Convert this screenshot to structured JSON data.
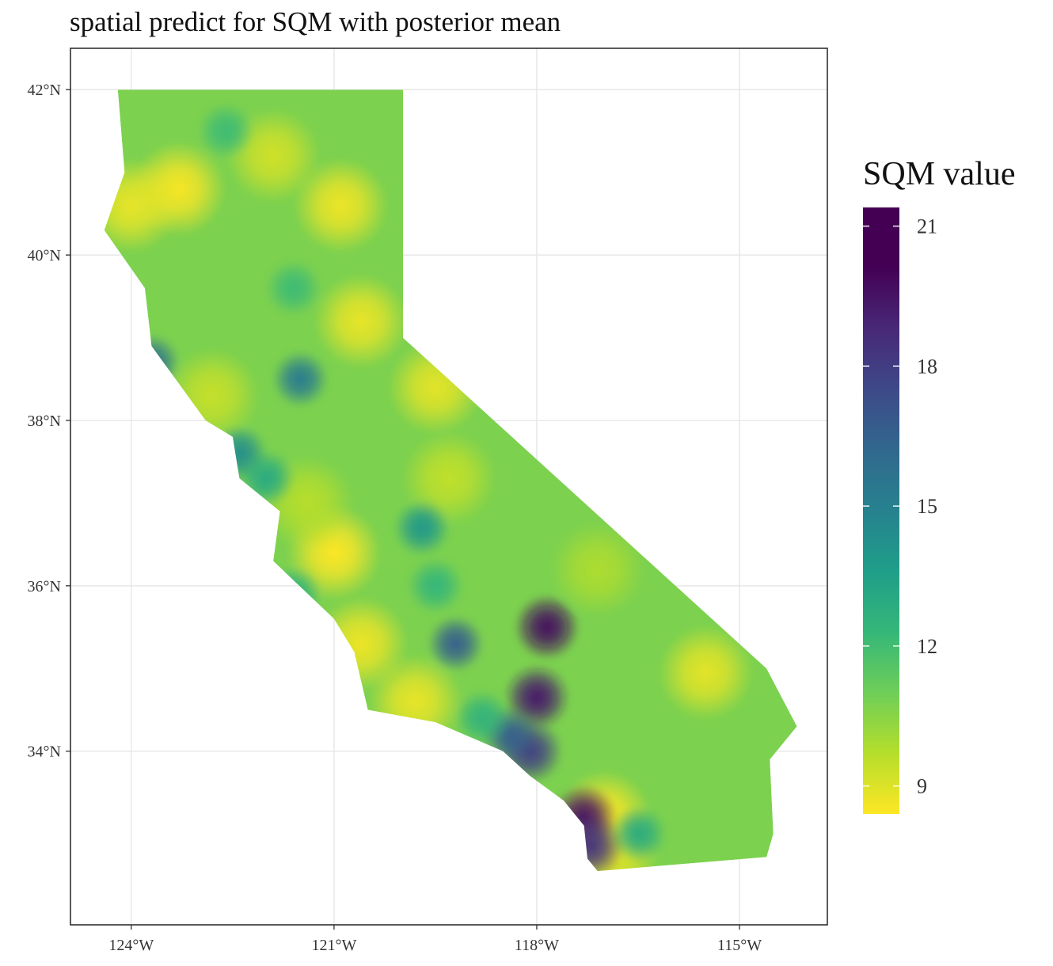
{
  "chart_data": {
    "type": "heatmap",
    "title": "spatial predict for SQM with posterior mean",
    "xlabel": "",
    "ylabel": "",
    "x_ticks": [
      {
        "value": -124,
        "label": "124°W"
      },
      {
        "value": -121,
        "label": "121°W"
      },
      {
        "value": -118,
        "label": "118°W"
      },
      {
        "value": -115,
        "label": "115°W"
      }
    ],
    "y_ticks": [
      {
        "value": 34,
        "label": "34°N"
      },
      {
        "value": 36,
        "label": "36°N"
      },
      {
        "value": 38,
        "label": "38°N"
      },
      {
        "value": 40,
        "label": "40°N"
      },
      {
        "value": 42,
        "label": "42°N"
      }
    ],
    "xlim": [
      -124.9,
      -113.7
    ],
    "ylim": [
      31.9,
      42.5
    ],
    "grid": true,
    "colorscale": "viridis",
    "legend": {
      "title": "SQM value",
      "position": "right",
      "range": [
        8.4,
        21.4
      ],
      "ticks": [
        {
          "value": 9,
          "label": "9"
        },
        {
          "value": 12,
          "label": "12"
        },
        {
          "value": 15,
          "label": "15"
        },
        {
          "value": 18,
          "label": "18"
        },
        {
          "value": 21,
          "label": "21"
        }
      ]
    },
    "region_outline": [
      [
        -124.2,
        42.0
      ],
      [
        -119.98,
        42.0
      ],
      [
        -119.98,
        39.0
      ],
      [
        -114.6,
        35.0
      ],
      [
        -114.15,
        34.3
      ],
      [
        -114.55,
        33.9
      ],
      [
        -114.5,
        33.0
      ],
      [
        -114.6,
        32.72
      ],
      [
        -117.1,
        32.55
      ],
      [
        -117.25,
        32.7
      ],
      [
        -117.3,
        33.1
      ],
      [
        -117.6,
        33.4
      ],
      [
        -118.1,
        33.7
      ],
      [
        -118.5,
        34.0
      ],
      [
        -119.5,
        34.35
      ],
      [
        -120.5,
        34.5
      ],
      [
        -120.7,
        35.2
      ],
      [
        -121.0,
        35.6
      ],
      [
        -121.9,
        36.3
      ],
      [
        -121.8,
        36.9
      ],
      [
        -122.4,
        37.3
      ],
      [
        -122.5,
        37.8
      ],
      [
        -122.9,
        38.0
      ],
      [
        -123.7,
        38.9
      ],
      [
        -123.8,
        39.6
      ],
      [
        -124.4,
        40.3
      ],
      [
        -124.1,
        41.0
      ],
      [
        -124.2,
        42.0
      ]
    ],
    "background_value": 11.0,
    "hotspots": [
      {
        "lon": -117.85,
        "lat": 35.5,
        "value": 21.0
      },
      {
        "lon": -118.0,
        "lat": 34.65,
        "value": 20.5
      },
      {
        "lon": -117.3,
        "lat": 33.2,
        "value": 20.8
      },
      {
        "lon": -117.2,
        "lat": 32.85,
        "value": 19.5
      },
      {
        "lon": -118.1,
        "lat": 34.0,
        "value": 19.0
      },
      {
        "lon": -118.4,
        "lat": 34.2,
        "value": 17.5
      },
      {
        "lon": -119.2,
        "lat": 35.3,
        "value": 17.5
      },
      {
        "lon": -123.7,
        "lat": 38.7,
        "value": 16.5
      },
      {
        "lon": -121.5,
        "lat": 38.5,
        "value": 16.0
      },
      {
        "lon": -122.4,
        "lat": 37.6,
        "value": 15.0
      },
      {
        "lon": -119.7,
        "lat": 36.7,
        "value": 14.5
      },
      {
        "lon": -122.0,
        "lat": 37.3,
        "value": 13.5
      },
      {
        "lon": -116.5,
        "lat": 33.0,
        "value": 13.5
      },
      {
        "lon": -122.6,
        "lat": 41.5,
        "value": 12.5
      },
      {
        "lon": -121.6,
        "lat": 39.6,
        "value": 12.5
      },
      {
        "lon": -118.8,
        "lat": 34.4,
        "value": 13.0
      },
      {
        "lon": -119.5,
        "lat": 36.0,
        "value": 12.8
      },
      {
        "lon": -121.6,
        "lat": 35.9,
        "value": 13.0
      }
    ],
    "lowspots": [
      {
        "lon": -123.3,
        "lat": 40.8,
        "value": 8.5
      },
      {
        "lon": -124.0,
        "lat": 40.6,
        "value": 8.8
      },
      {
        "lon": -120.9,
        "lat": 40.6,
        "value": 8.7
      },
      {
        "lon": -121.9,
        "lat": 41.2,
        "value": 9.3
      },
      {
        "lon": -120.6,
        "lat": 39.2,
        "value": 8.8
      },
      {
        "lon": -119.5,
        "lat": 38.4,
        "value": 8.9
      },
      {
        "lon": -121.0,
        "lat": 36.4,
        "value": 8.4
      },
      {
        "lon": -120.6,
        "lat": 35.3,
        "value": 8.7
      },
      {
        "lon": -119.8,
        "lat": 34.6,
        "value": 8.8
      },
      {
        "lon": -115.5,
        "lat": 34.95,
        "value": 8.9
      },
      {
        "lon": -117.0,
        "lat": 33.2,
        "value": 8.5
      },
      {
        "lon": -116.9,
        "lat": 32.7,
        "value": 9.0
      },
      {
        "lon": -119.3,
        "lat": 37.3,
        "value": 9.6
      },
      {
        "lon": -117.1,
        "lat": 36.2,
        "value": 10.0
      },
      {
        "lon": -122.8,
        "lat": 38.3,
        "value": 9.5
      },
      {
        "lon": -121.4,
        "lat": 37.0,
        "value": 9.8
      }
    ]
  },
  "colors": {
    "panel_border": "#222222",
    "grid": "#e8e8e8"
  }
}
